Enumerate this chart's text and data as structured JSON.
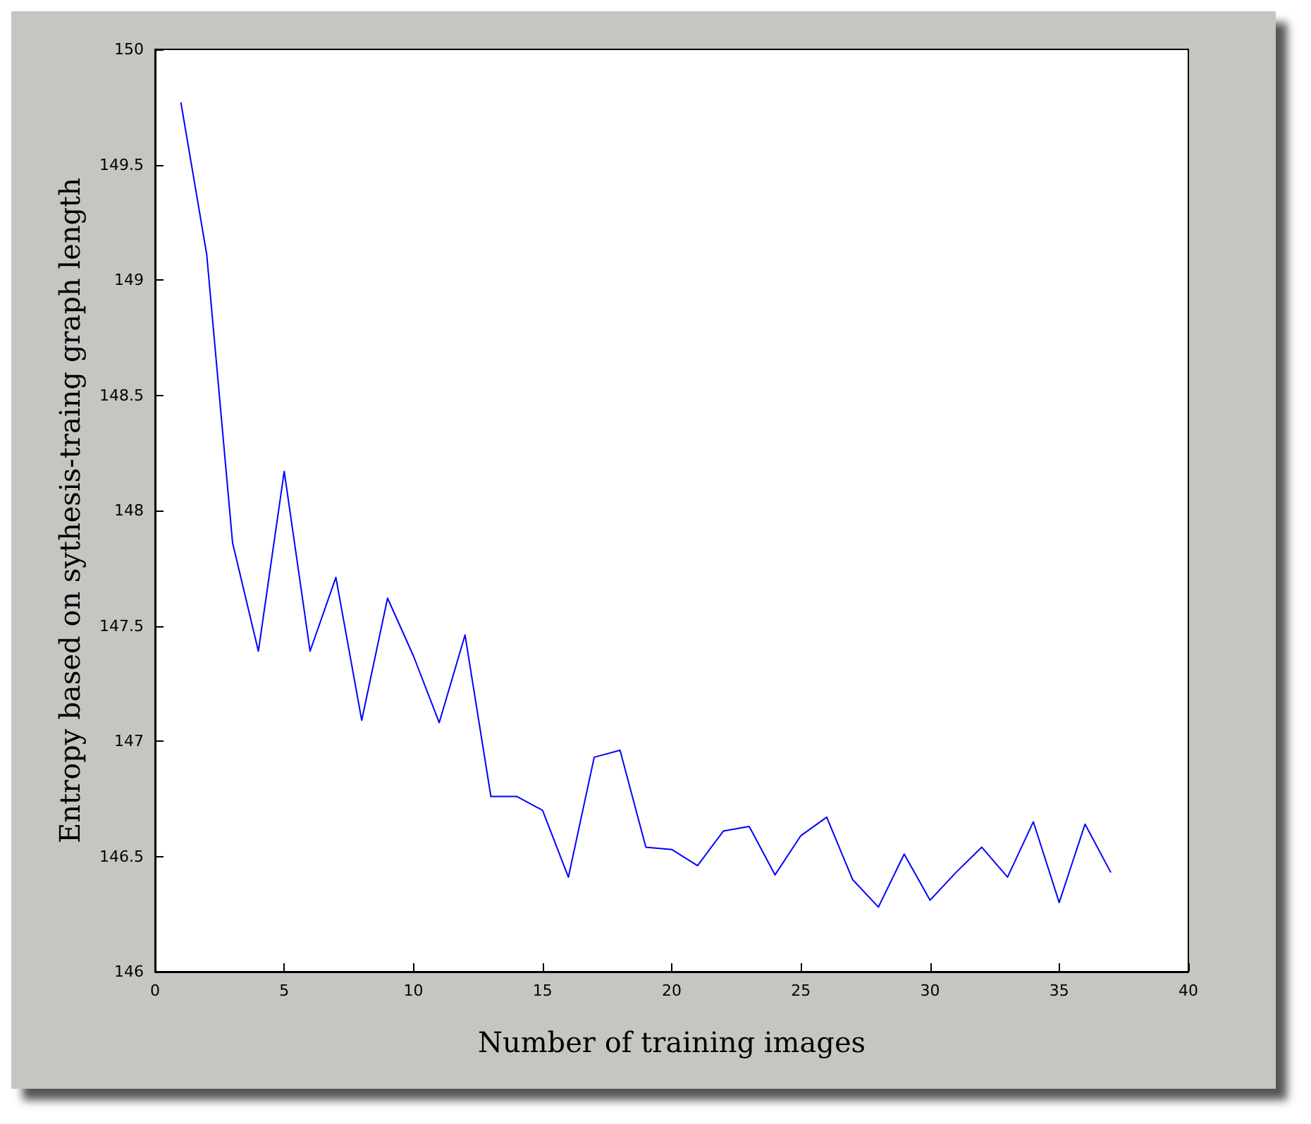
{
  "chart_data": {
    "type": "line",
    "xlabel": "Number of training images",
    "ylabel": "Entropy based on sythesis-traing graph length",
    "x": [
      1,
      2,
      3,
      4,
      5,
      6,
      7,
      8,
      9,
      10,
      11,
      12,
      13,
      14,
      15,
      16,
      17,
      18,
      19,
      20,
      21,
      22,
      23,
      24,
      25,
      26,
      27,
      28,
      29,
      30,
      31,
      32,
      33,
      34,
      35,
      36,
      37
    ],
    "series": [
      {
        "color": "#0000ff",
        "values": [
          149.77,
          149.11,
          147.86,
          147.39,
          148.17,
          147.39,
          147.71,
          147.09,
          147.62,
          147.37,
          147.08,
          147.46,
          146.76,
          146.76,
          146.7,
          146.41,
          146.93,
          146.96,
          146.54,
          146.53,
          146.46,
          146.61,
          146.63,
          146.42,
          146.59,
          146.67,
          146.4,
          146.28,
          146.51,
          146.31,
          146.43,
          146.54,
          146.41,
          146.65,
          146.3,
          146.64,
          146.43
        ]
      }
    ],
    "xlim": [
      0,
      40
    ],
    "xticks": [
      0,
      5,
      10,
      15,
      20,
      25,
      30,
      35,
      40
    ],
    "ylim": [
      146,
      150
    ],
    "yticks": [
      146,
      146.5,
      147,
      147.5,
      148,
      148.5,
      149,
      149.5,
      150
    ],
    "marker": "none",
    "line_style": "solid"
  }
}
